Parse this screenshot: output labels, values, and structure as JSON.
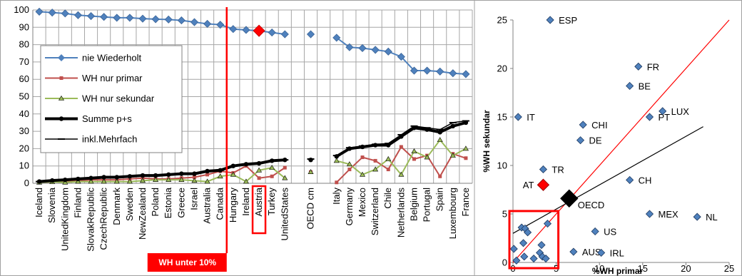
{
  "chart_data": [
    {
      "type": "line",
      "categories": [
        "Iceland",
        "Slovenia",
        "UnitedKingdom",
        "Finland",
        "SlovakRepublic",
        "CzechRepublic",
        "Denmark",
        "Sweden",
        "NewZealand",
        "Poland",
        "Estonia",
        "Greece",
        "Israel",
        "Australia",
        "Canada",
        "Hungary",
        "Ireland",
        "Austria",
        "Turkey",
        "UnitedStates",
        "",
        "OECD cm",
        "",
        "Italy",
        "Germany",
        "Mexico",
        "Switzerland",
        "Chile",
        "Netherlands",
        "Belgium",
        "Portugal",
        "Spain",
        "Luxembourg",
        "France"
      ],
      "ylim": [
        0,
        100
      ],
      "yticks": [
        0,
        10,
        20,
        30,
        40,
        50,
        60,
        70,
        80,
        90,
        100
      ],
      "grid": true,
      "legend": "left",
      "series": [
        {
          "name": "nie Wiederholt",
          "color": "#4f81bd",
          "values": [
            99,
            98.5,
            98,
            97,
            96.5,
            96,
            95.5,
            95.5,
            95,
            94.7,
            94.5,
            94,
            93,
            92,
            91.5,
            89,
            88.5,
            88,
            87,
            86,
            null,
            86,
            null,
            84,
            78.5,
            78,
            77,
            76,
            73,
            65,
            65,
            64.5,
            63.5,
            63
          ]
        },
        {
          "name": "WH nur primar",
          "color": "#c0504d",
          "values": [
            0.5,
            0.8,
            1,
            1.5,
            2,
            2,
            2,
            2.5,
            3,
            2.5,
            2.5,
            3,
            3.5,
            5,
            7,
            6,
            10,
            3,
            4,
            9,
            null,
            6.5,
            null,
            0.5,
            8,
            15,
            13,
            8,
            21,
            14,
            16,
            4,
            17,
            14.5
          ]
        },
        {
          "name": "WH nur sekundar",
          "color": "#9bbb59",
          "values": [
            0.5,
            0.8,
            0.5,
            1,
            1,
            1,
            1,
            1,
            1.5,
            2,
            2,
            2,
            1.5,
            1,
            4,
            5,
            1,
            7.5,
            9,
            3,
            null,
            6.5,
            null,
            13,
            11,
            5,
            8,
            14,
            5,
            18.5,
            15,
            25,
            16,
            20
          ]
        },
        {
          "name": "Summe p+s",
          "color": "#000000",
          "values": [
            1,
            1.6,
            2,
            2.5,
            3,
            3.5,
            3.5,
            4,
            4.5,
            4.5,
            5,
            5.5,
            5.5,
            7,
            7.5,
            10,
            11,
            11.5,
            13,
            13.5,
            null,
            13.5,
            null,
            15.5,
            20,
            21,
            22,
            22,
            27,
            32,
            31,
            29.5,
            33,
            35
          ]
        },
        {
          "name": "inkl.Mehrfach",
          "color": "#000000",
          "values": [
            1,
            1.6,
            2,
            2.5,
            3,
            3.5,
            3.5,
            4,
            4.5,
            4.5,
            5,
            5.5,
            5.5,
            7,
            7.5,
            10,
            11,
            11.5,
            13,
            13.5,
            null,
            14,
            null,
            16,
            20.5,
            21.5,
            22.5,
            23,
            28,
            33,
            32,
            31,
            35,
            36
          ]
        }
      ],
      "highlight_category": "Austria",
      "threshold_label": "WH unter 10%"
    },
    {
      "type": "scatter",
      "xlabel": "%WH primar",
      "ylabel": "%WH sekundar",
      "xlim": [
        0,
        25
      ],
      "ylim": [
        0,
        25
      ],
      "xticks": [
        0,
        5,
        10,
        15,
        20,
        25
      ],
      "yticks": [
        0,
        5,
        10,
        15,
        20,
        25
      ],
      "points": [
        {
          "label": "ESP",
          "x": 4.3,
          "y": 25
        },
        {
          "label": "FR",
          "x": 14.5,
          "y": 20.2
        },
        {
          "label": "BE",
          "x": 13.5,
          "y": 18.2
        },
        {
          "label": "IT",
          "x": 0.6,
          "y": 15
        },
        {
          "label": "CHI",
          "x": 8.1,
          "y": 14.2
        },
        {
          "label": "PT",
          "x": 15.8,
          "y": 15
        },
        {
          "label": "LUX",
          "x": 17.3,
          "y": 15.6
        },
        {
          "label": "DE",
          "x": 7.8,
          "y": 12.6
        },
        {
          "label": "TR",
          "x": 3.5,
          "y": 9.6
        },
        {
          "label": "CH",
          "x": 13.5,
          "y": 8.5
        },
        {
          "label": "MEX",
          "x": 15.8,
          "y": 5
        },
        {
          "label": "NL",
          "x": 21.3,
          "y": 4.7
        },
        {
          "label": "US",
          "x": 9.5,
          "y": 3.2
        },
        {
          "label": "AUS",
          "x": 7,
          "y": 1.1
        },
        {
          "label": "IRL",
          "x": 10.2,
          "y": 1
        },
        {
          "label": "",
          "x": 1,
          "y": 3.6
        },
        {
          "label": "",
          "x": 1.4,
          "y": 3.5
        },
        {
          "label": "",
          "x": 1.7,
          "y": 3.1
        },
        {
          "label": "",
          "x": 1.2,
          "y": 2
        },
        {
          "label": "",
          "x": 4,
          "y": 4
        },
        {
          "label": "",
          "x": 3.3,
          "y": 1.8
        },
        {
          "label": "",
          "x": 3.1,
          "y": 1
        },
        {
          "label": "",
          "x": 3.4,
          "y": 0.6
        },
        {
          "label": "",
          "x": 3.8,
          "y": 0.4
        },
        {
          "label": "",
          "x": 2.4,
          "y": 0.4
        },
        {
          "label": "",
          "x": 1.3,
          "y": 0.6
        },
        {
          "label": "",
          "x": 0.1,
          "y": 1.4
        },
        {
          "label": "",
          "x": 0.4,
          "y": 0.2
        }
      ],
      "special_points": [
        {
          "label": "AT",
          "x": 3.5,
          "y": 8,
          "color": "#ff0000"
        },
        {
          "label": "OECD",
          "x": 6.5,
          "y": 6.6,
          "color": "#000000"
        }
      ],
      "lines": [
        {
          "from": [
            0,
            0
          ],
          "to": [
            25,
            25
          ],
          "color": "#ff0000"
        },
        {
          "from": [
            0,
            3
          ],
          "to": [
            22,
            14
          ],
          "color": "#000000"
        }
      ]
    }
  ]
}
